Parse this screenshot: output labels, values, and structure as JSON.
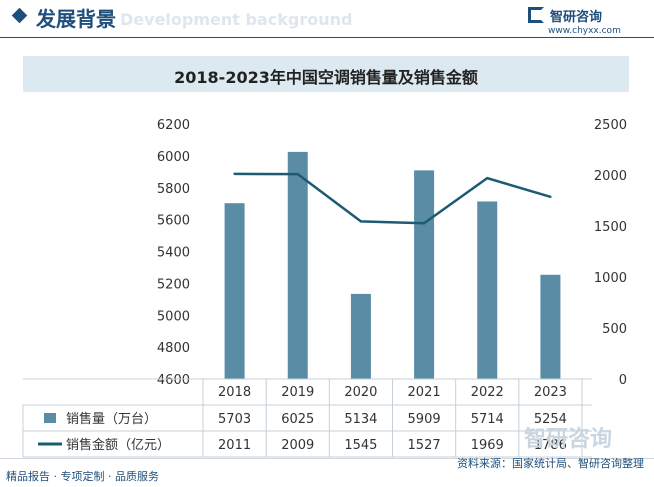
{
  "header": {
    "title": "发展背景",
    "watermark_en": "Development background"
  },
  "logo": {
    "name": "智研咨询",
    "url": "www.chyxx.com",
    "watermark_text": "智研咨询"
  },
  "chart_data": {
    "type": "bar",
    "title": "2018-2023年中国空调销售量及销售金额",
    "categories": [
      "2018",
      "2019",
      "2020",
      "2021",
      "2022",
      "2023"
    ],
    "series": [
      {
        "name": "销售量（万台）",
        "type": "bar",
        "axis": "left",
        "values": [
          5703,
          6025,
          5134,
          5909,
          5714,
          5254
        ],
        "color": "#5b8ca5"
      },
      {
        "name": "销售金额（亿元）",
        "type": "line",
        "axis": "right",
        "values": [
          2011,
          2009,
          1545,
          1527,
          1969,
          1786
        ],
        "color": "#1d5b73"
      }
    ],
    "y_left": {
      "min": 4600,
      "max": 6200,
      "ticks": [
        4600,
        4800,
        5000,
        5200,
        5400,
        5600,
        5800,
        6000,
        6200
      ]
    },
    "y_right": {
      "min": 0,
      "max": 2500,
      "ticks": [
        0,
        500,
        1000,
        1500,
        2000,
        2500
      ]
    },
    "grid": false,
    "data_table": true
  },
  "footer": {
    "left": "精品报告 · 专项定制 · 品质服务",
    "source": "资料来源：国家统计局、智研咨询整理"
  }
}
